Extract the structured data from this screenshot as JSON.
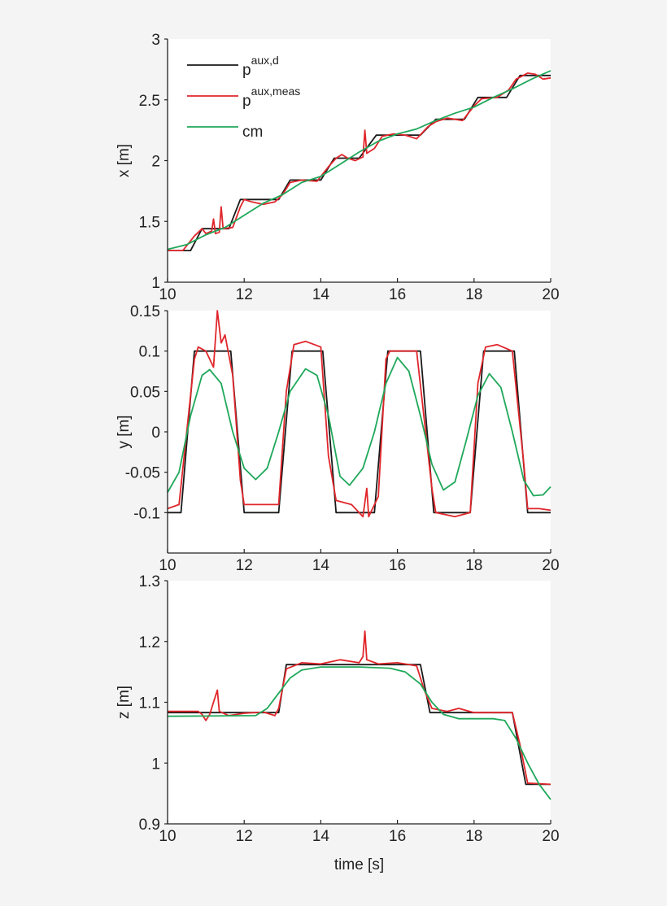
{
  "chart_data": [
    {
      "type": "line",
      "ylabel": "x [m]",
      "xlabel": "",
      "xlim": [
        10,
        20
      ],
      "ylim": [
        1,
        3
      ],
      "xticks": [
        10,
        12,
        14,
        16,
        18,
        20
      ],
      "yticks": [
        1,
        1.5,
        2,
        2.5,
        3
      ],
      "grid": false,
      "legend": {
        "placement": "top-left",
        "entries": [
          {
            "base": "p",
            "sup": "aux,d",
            "color": "#1a1a1a"
          },
          {
            "base": "p",
            "sup": "aux,meas",
            "color": "#e0262b"
          },
          {
            "base": "cm",
            "sup": "",
            "color": "#1fa85a"
          }
        ]
      },
      "series": [
        {
          "name": "p^aux,d",
          "color": "#1a1a1a",
          "points": [
            [
              10,
              1.26
            ],
            [
              10.6,
              1.26
            ],
            [
              10.9,
              1.44
            ],
            [
              11.6,
              1.44
            ],
            [
              11.9,
              1.68
            ],
            [
              12.9,
              1.68
            ],
            [
              13.2,
              1.84
            ],
            [
              14.0,
              1.84
            ],
            [
              14.35,
              2.02
            ],
            [
              15.0,
              2.02
            ],
            [
              15.45,
              2.21
            ],
            [
              16.6,
              2.21
            ],
            [
              17.0,
              2.34
            ],
            [
              17.75,
              2.34
            ],
            [
              18.1,
              2.52
            ],
            [
              18.85,
              2.52
            ],
            [
              19.2,
              2.7
            ],
            [
              20,
              2.7
            ]
          ]
        },
        {
          "name": "p^aux,meas",
          "color": "#e0262b",
          "points": [
            [
              10,
              1.26
            ],
            [
              10.4,
              1.26
            ],
            [
              10.7,
              1.38
            ],
            [
              10.9,
              1.44
            ],
            [
              11.0,
              1.4
            ],
            [
              11.15,
              1.42
            ],
            [
              11.2,
              1.52
            ],
            [
              11.25,
              1.4
            ],
            [
              11.35,
              1.41
            ],
            [
              11.4,
              1.62
            ],
            [
              11.45,
              1.44
            ],
            [
              11.7,
              1.45
            ],
            [
              11.9,
              1.62
            ],
            [
              12.0,
              1.68
            ],
            [
              12.2,
              1.66
            ],
            [
              12.5,
              1.64
            ],
            [
              12.8,
              1.66
            ],
            [
              13.0,
              1.72
            ],
            [
              13.1,
              1.77
            ],
            [
              13.2,
              1.82
            ],
            [
              13.5,
              1.84
            ],
            [
              13.9,
              1.83
            ],
            [
              14.2,
              1.95
            ],
            [
              14.4,
              2.02
            ],
            [
              14.55,
              2.05
            ],
            [
              14.7,
              2.02
            ],
            [
              14.9,
              2.0
            ],
            [
              15.1,
              2.03
            ],
            [
              15.15,
              2.25
            ],
            [
              15.2,
              2.06
            ],
            [
              15.4,
              2.1
            ],
            [
              15.6,
              2.2
            ],
            [
              15.9,
              2.22
            ],
            [
              16.2,
              2.21
            ],
            [
              16.5,
              2.18
            ],
            [
              16.8,
              2.28
            ],
            [
              17.0,
              2.32
            ],
            [
              17.3,
              2.35
            ],
            [
              17.7,
              2.33
            ],
            [
              18.0,
              2.45
            ],
            [
              18.2,
              2.51
            ],
            [
              18.6,
              2.52
            ],
            [
              18.9,
              2.58
            ],
            [
              19.1,
              2.67
            ],
            [
              19.4,
              2.72
            ],
            [
              19.6,
              2.71
            ],
            [
              19.8,
              2.67
            ],
            [
              20,
              2.68
            ]
          ]
        },
        {
          "name": "cm",
          "color": "#1fa85a",
          "points": [
            [
              10,
              1.27
            ],
            [
              10.5,
              1.31
            ],
            [
              11,
              1.39
            ],
            [
              11.5,
              1.45
            ],
            [
              12,
              1.55
            ],
            [
              12.5,
              1.65
            ],
            [
              13,
              1.72
            ],
            [
              13.5,
              1.82
            ],
            [
              14,
              1.87
            ],
            [
              14.5,
              1.97
            ],
            [
              15,
              2.07
            ],
            [
              15.5,
              2.16
            ],
            [
              16,
              2.22
            ],
            [
              16.5,
              2.26
            ],
            [
              17,
              2.33
            ],
            [
              17.5,
              2.39
            ],
            [
              18,
              2.44
            ],
            [
              18.5,
              2.52
            ],
            [
              19,
              2.59
            ],
            [
              19.5,
              2.67
            ],
            [
              20,
              2.74
            ]
          ]
        }
      ]
    },
    {
      "type": "line",
      "ylabel": "y [m]",
      "xlabel": "",
      "xlim": [
        10,
        20
      ],
      "ylim": [
        -0.15,
        0.15
      ],
      "xticks": [
        10,
        12,
        14,
        16,
        18,
        20
      ],
      "yticks": [
        -0.1,
        -0.05,
        0,
        0.05,
        0.1,
        0.15
      ],
      "grid": false,
      "series": [
        {
          "name": "p^aux,d",
          "color": "#1a1a1a",
          "points": [
            [
              10,
              -0.1
            ],
            [
              10.35,
              -0.1
            ],
            [
              10.7,
              0.1
            ],
            [
              11.65,
              0.1
            ],
            [
              12.0,
              -0.1
            ],
            [
              12.9,
              -0.1
            ],
            [
              13.25,
              0.1
            ],
            [
              14.05,
              0.1
            ],
            [
              14.4,
              -0.1
            ],
            [
              15.4,
              -0.1
            ],
            [
              15.75,
              0.1
            ],
            [
              16.6,
              0.1
            ],
            [
              16.95,
              -0.1
            ],
            [
              17.9,
              -0.1
            ],
            [
              18.25,
              0.1
            ],
            [
              19.05,
              0.1
            ],
            [
              19.4,
              -0.1
            ],
            [
              20,
              -0.1
            ]
          ]
        },
        {
          "name": "p^aux,meas",
          "color": "#e0262b",
          "points": [
            [
              10,
              -0.095
            ],
            [
              10.3,
              -0.09
            ],
            [
              10.7,
              0.09
            ],
            [
              10.8,
              0.105
            ],
            [
              11.0,
              0.1
            ],
            [
              11.2,
              0.08
            ],
            [
              11.3,
              0.15
            ],
            [
              11.4,
              0.11
            ],
            [
              11.5,
              0.12
            ],
            [
              11.7,
              0.07
            ],
            [
              11.9,
              -0.06
            ],
            [
              12.0,
              -0.09
            ],
            [
              12.9,
              -0.09
            ],
            [
              13.1,
              0.05
            ],
            [
              13.3,
              0.108
            ],
            [
              13.6,
              0.112
            ],
            [
              14.0,
              0.105
            ],
            [
              14.2,
              -0.03
            ],
            [
              14.4,
              -0.085
            ],
            [
              14.8,
              -0.09
            ],
            [
              15.0,
              -0.1
            ],
            [
              15.1,
              -0.105
            ],
            [
              15.2,
              -0.07
            ],
            [
              15.25,
              -0.105
            ],
            [
              15.5,
              -0.08
            ],
            [
              15.7,
              0.09
            ],
            [
              15.8,
              0.1
            ],
            [
              16.0,
              0.1
            ],
            [
              16.5,
              0.1
            ],
            [
              16.9,
              -0.07
            ],
            [
              17.0,
              -0.1
            ],
            [
              17.5,
              -0.105
            ],
            [
              17.9,
              -0.1
            ],
            [
              18.1,
              0.06
            ],
            [
              18.3,
              0.105
            ],
            [
              18.6,
              0.108
            ],
            [
              19.0,
              0.1
            ],
            [
              19.3,
              -0.04
            ],
            [
              19.4,
              -0.095
            ],
            [
              19.7,
              -0.095
            ],
            [
              20,
              -0.097
            ]
          ]
        },
        {
          "name": "cm",
          "color": "#1fa85a",
          "points": [
            [
              10,
              -0.075
            ],
            [
              10.3,
              -0.05
            ],
            [
              10.6,
              0.02
            ],
            [
              10.9,
              0.07
            ],
            [
              11.1,
              0.077
            ],
            [
              11.4,
              0.06
            ],
            [
              11.7,
              0.0
            ],
            [
              12.0,
              -0.045
            ],
            [
              12.3,
              -0.059
            ],
            [
              12.6,
              -0.045
            ],
            [
              12.9,
              0.0
            ],
            [
              13.2,
              0.05
            ],
            [
              13.6,
              0.078
            ],
            [
              13.9,
              0.07
            ],
            [
              14.2,
              0.02
            ],
            [
              14.5,
              -0.055
            ],
            [
              14.75,
              -0.066
            ],
            [
              15.1,
              -0.045
            ],
            [
              15.4,
              0.0
            ],
            [
              15.7,
              0.06
            ],
            [
              16.0,
              0.092
            ],
            [
              16.3,
              0.075
            ],
            [
              16.6,
              0.02
            ],
            [
              16.9,
              -0.04
            ],
            [
              17.2,
              -0.072
            ],
            [
              17.5,
              -0.062
            ],
            [
              17.8,
              -0.01
            ],
            [
              18.1,
              0.045
            ],
            [
              18.4,
              0.072
            ],
            [
              18.7,
              0.055
            ],
            [
              19.0,
              0.0
            ],
            [
              19.3,
              -0.06
            ],
            [
              19.55,
              -0.079
            ],
            [
              19.8,
              -0.078
            ],
            [
              20,
              -0.068
            ]
          ]
        }
      ]
    },
    {
      "type": "line",
      "ylabel": "z [m]",
      "xlabel": "time [s]",
      "xlim": [
        10,
        20
      ],
      "ylim": [
        0.9,
        1.3
      ],
      "xticks": [
        10,
        12,
        14,
        16,
        18,
        20
      ],
      "yticks": [
        0.9,
        1,
        1.1,
        1.2,
        1.3
      ],
      "grid": false,
      "series": [
        {
          "name": "p^aux,d",
          "color": "#1a1a1a",
          "points": [
            [
              10,
              1.083
            ],
            [
              12.9,
              1.083
            ],
            [
              13.1,
              1.162
            ],
            [
              16.6,
              1.162
            ],
            [
              16.85,
              1.083
            ],
            [
              19.0,
              1.083
            ],
            [
              19.35,
              0.965
            ],
            [
              20,
              0.965
            ]
          ]
        },
        {
          "name": "p^aux,meas",
          "color": "#e0262b",
          "points": [
            [
              10,
              1.085
            ],
            [
              10.8,
              1.085
            ],
            [
              10.9,
              1.08
            ],
            [
              11.0,
              1.07
            ],
            [
              11.1,
              1.08
            ],
            [
              11.3,
              1.12
            ],
            [
              11.35,
              1.085
            ],
            [
              11.6,
              1.078
            ],
            [
              12.0,
              1.082
            ],
            [
              12.5,
              1.084
            ],
            [
              12.8,
              1.078
            ],
            [
              12.9,
              1.09
            ],
            [
              13.1,
              1.155
            ],
            [
              13.5,
              1.165
            ],
            [
              14.0,
              1.163
            ],
            [
              14.5,
              1.17
            ],
            [
              15.0,
              1.165
            ],
            [
              15.1,
              1.175
            ],
            [
              15.15,
              1.217
            ],
            [
              15.2,
              1.17
            ],
            [
              15.5,
              1.163
            ],
            [
              16.0,
              1.165
            ],
            [
              16.5,
              1.16
            ],
            [
              16.7,
              1.12
            ],
            [
              16.9,
              1.09
            ],
            [
              17.3,
              1.085
            ],
            [
              17.6,
              1.09
            ],
            [
              18.0,
              1.083
            ],
            [
              19.0,
              1.083
            ],
            [
              19.2,
              1.03
            ],
            [
              19.4,
              0.967
            ],
            [
              20,
              0.965
            ]
          ]
        },
        {
          "name": "cm",
          "color": "#1fa85a",
          "points": [
            [
              10,
              1.077
            ],
            [
              12.3,
              1.078
            ],
            [
              12.6,
              1.09
            ],
            [
              12.9,
              1.115
            ],
            [
              13.2,
              1.14
            ],
            [
              13.5,
              1.153
            ],
            [
              14,
              1.158
            ],
            [
              15,
              1.158
            ],
            [
              15.8,
              1.156
            ],
            [
              16.2,
              1.15
            ],
            [
              16.6,
              1.13
            ],
            [
              16.9,
              1.1
            ],
            [
              17.2,
              1.08
            ],
            [
              17.6,
              1.073
            ],
            [
              18.5,
              1.073
            ],
            [
              18.8,
              1.07
            ],
            [
              19.1,
              1.04
            ],
            [
              19.4,
              1.0
            ],
            [
              19.7,
              0.965
            ],
            [
              20,
              0.94
            ]
          ]
        }
      ]
    }
  ]
}
